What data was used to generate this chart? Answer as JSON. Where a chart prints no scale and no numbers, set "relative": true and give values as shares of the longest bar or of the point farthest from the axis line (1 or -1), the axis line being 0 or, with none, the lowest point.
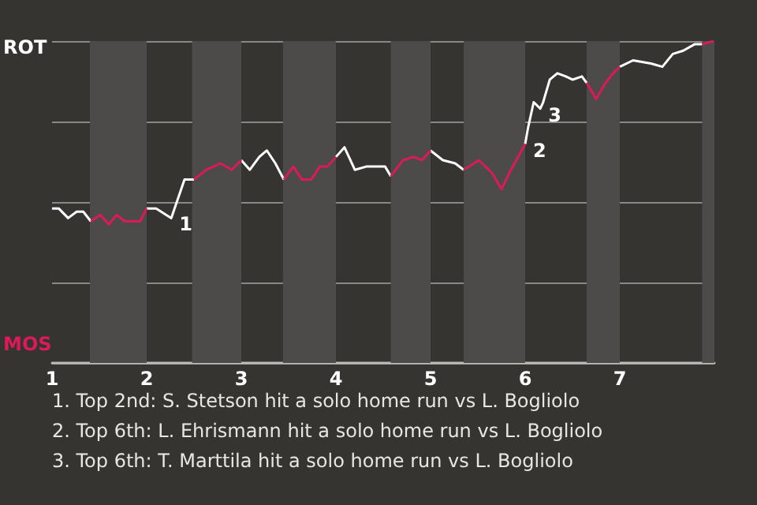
{
  "chart_data": {
    "type": "line",
    "relative": true,
    "x": [
      1,
      1.07,
      1.17,
      1.26,
      1.33,
      1.41,
      1.51,
      1.6,
      1.68,
      1.77,
      1.93,
      2,
      2.1,
      2.26,
      2.4,
      2.5,
      2.63,
      2.78,
      2.9,
      3,
      3.09,
      3.19,
      3.27,
      3.36,
      3.45,
      3.55,
      3.64,
      3.74,
      3.83,
      3.91,
      4,
      4.09,
      4.2,
      4.32,
      4.52,
      4.58,
      4.71,
      4.82,
      4.91,
      5,
      5.13,
      5.26,
      5.35,
      5.51,
      5.65,
      5.75,
      5.85,
      6,
      6.03,
      6.09,
      6.16,
      6.19,
      6.23,
      6.26,
      6.34,
      6.43,
      6.5,
      6.6,
      6.65,
      6.75,
      6.85,
      6.93,
      7,
      7.14,
      7.33,
      7.45,
      7.56,
      7.67,
      7.79,
      7.87,
      7.99
    ],
    "series": [
      {
        "name": "ROT",
        "color": "#ffffff",
        "values": [
          0.48,
          0.48,
          0.45,
          0.47,
          0.47,
          0.44,
          null,
          null,
          null,
          null,
          null,
          0.48,
          0.48,
          0.45,
          0.57,
          0.57,
          null,
          null,
          null,
          0.63,
          0.6,
          0.64,
          0.66,
          0.62,
          0.57,
          null,
          null,
          null,
          null,
          null,
          0.64,
          0.67,
          0.6,
          0.61,
          0.61,
          0.58,
          null,
          null,
          null,
          0.66,
          0.63,
          0.62,
          0.6,
          null,
          null,
          null,
          null,
          0.68,
          0.73,
          0.81,
          0.79,
          0.81,
          0.85,
          0.88,
          0.9,
          0.89,
          0.88,
          0.89,
          0.87,
          null,
          null,
          null,
          0.92,
          0.94,
          0.93,
          0.92,
          0.96,
          0.97,
          0.99,
          0.99,
          null
        ]
      },
      {
        "name": "MOS",
        "color": "#dc1a5a",
        "values": [
          null,
          null,
          null,
          null,
          null,
          0.44,
          0.46,
          0.43,
          0.46,
          0.44,
          0.44,
          0.48,
          null,
          null,
          null,
          0.57,
          0.6,
          0.62,
          0.6,
          0.63,
          null,
          null,
          null,
          null,
          0.57,
          0.61,
          0.57,
          0.57,
          0.61,
          0.61,
          0.64,
          null,
          null,
          null,
          null,
          0.58,
          0.63,
          0.64,
          0.63,
          0.66,
          null,
          null,
          0.6,
          0.63,
          0.59,
          0.54,
          0.6,
          0.68,
          null,
          null,
          null,
          null,
          null,
          null,
          null,
          null,
          null,
          null,
          0.87,
          0.82,
          0.87,
          0.9,
          0.92,
          null,
          null,
          null,
          null,
          null,
          null,
          0.99,
          1
        ]
      }
    ],
    "xlim": [
      1,
      8
    ],
    "xticks": [
      1,
      2,
      3,
      4,
      5,
      6,
      7
    ],
    "bands": [
      {
        "axis": "x",
        "from": 1.4,
        "to": 2,
        "color": "#4d4b49"
      },
      {
        "axis": "x",
        "from": 2.48,
        "to": 3,
        "color": "#4d4b49"
      },
      {
        "axis": "x",
        "from": 3.44,
        "to": 4,
        "color": "#4d4b49"
      },
      {
        "axis": "x",
        "from": 4.58,
        "to": 5,
        "color": "#4d4b49"
      },
      {
        "axis": "x",
        "from": 5.35,
        "to": 6,
        "color": "#4d4b49"
      },
      {
        "axis": "x",
        "from": 6.65,
        "to": 7,
        "color": "#4d4b49"
      },
      {
        "axis": "x",
        "from": 7.87,
        "to": 8,
        "color": "#4d4b49"
      }
    ],
    "grid": "y",
    "annotations": [
      {
        "text": "1",
        "x": 2.26,
        "y": 0.45
      },
      {
        "text": "2",
        "x": 6,
        "y": 0.68
      },
      {
        "text": "3",
        "x": 6.16,
        "y": 0.79
      },
      "1. Top 2nd: S. Stetson hit a solo home run vs L. Bogliolo",
      "2. Top 6th: L. Ehrismann hit a solo home run vs L. Bogliolo",
      "3. Top 6th: T. Marttila hit a solo home run vs L. Bogliolo"
    ]
  }
}
